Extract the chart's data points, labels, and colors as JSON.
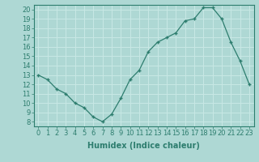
{
  "x": [
    0,
    1,
    2,
    3,
    4,
    5,
    6,
    7,
    8,
    9,
    10,
    11,
    12,
    13,
    14,
    15,
    16,
    17,
    18,
    19,
    20,
    21,
    22,
    23
  ],
  "y": [
    13,
    12.5,
    11.5,
    11,
    10,
    9.5,
    8.5,
    8,
    8.8,
    10.5,
    12.5,
    13.5,
    15.5,
    16.5,
    17,
    17.5,
    18.8,
    19,
    20.2,
    20.2,
    19,
    16.5,
    14.5,
    12
  ],
  "xlabel": "Humidex (Indice chaleur)",
  "xlim": [
    -0.5,
    23.5
  ],
  "ylim": [
    7.5,
    20.5
  ],
  "yticks": [
    8,
    9,
    10,
    11,
    12,
    13,
    14,
    15,
    16,
    17,
    18,
    19,
    20
  ],
  "xticks": [
    0,
    1,
    2,
    3,
    4,
    5,
    6,
    7,
    8,
    9,
    10,
    11,
    12,
    13,
    14,
    15,
    16,
    17,
    18,
    19,
    20,
    21,
    22,
    23
  ],
  "line_color": "#2d7d6e",
  "marker": "+",
  "bg_color": "#aed8d4",
  "grid_color": "#c8e8e5",
  "label_fontsize": 7,
  "tick_fontsize": 6
}
